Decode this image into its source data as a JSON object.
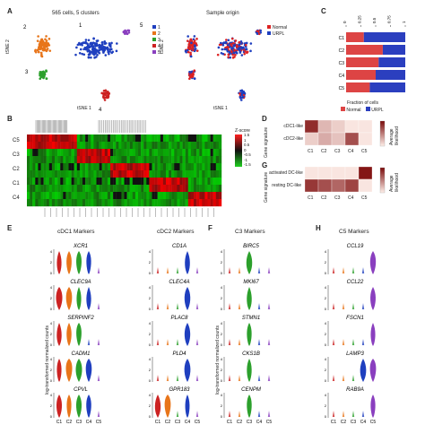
{
  "panels": {
    "A": {
      "letter": "A",
      "left_title": "565 cells, 5 clusters",
      "right_title": "Sample origin",
      "axis_x": "tSNE 1",
      "axis_y": "tSNE 2",
      "cluster_legend": [
        "1",
        "2",
        "3",
        "4",
        "5"
      ],
      "cluster_colors": [
        "#1f3fbf",
        "#e8751a",
        "#2ca02c",
        "#cc2222",
        "#8a3fbf"
      ],
      "origin_legend": [
        "Normal",
        "URPL"
      ],
      "origin_colors": [
        "#dd2222",
        "#1f3fbf"
      ],
      "cluster_labels": [
        "1",
        "2",
        "3",
        "4",
        "5"
      ]
    },
    "B": {
      "letter": "B",
      "rows": [
        "C5",
        "C3",
        "C2",
        "C1",
        "C4"
      ],
      "colorbar_ticks": [
        "1.5",
        "1",
        "0.5",
        "0",
        "-0.5",
        "-1",
        "-1.5"
      ],
      "colorbar_title": "Z-score"
    },
    "C": {
      "letter": "C",
      "rows": [
        "C1",
        "C2",
        "C3",
        "C4",
        "C5"
      ],
      "axis_label": "Fraction of cells",
      "ticks": [
        "0",
        "0.25",
        "0.5",
        "0.75",
        "1"
      ],
      "legend": [
        "Normal",
        "URPL"
      ],
      "colors": [
        "#dd4444",
        "#2b3fbf"
      ]
    },
    "D": {
      "letter": "D",
      "axis_title": "Gene signature",
      "rows": [
        "cDC1-like",
        "cDC2-like"
      ],
      "cols": [
        "C1",
        "C2",
        "C3",
        "C4",
        "C5"
      ],
      "cbar_label": "Average likelihood"
    },
    "G": {
      "letter": "G",
      "axis_title": "Gene signature",
      "rows": [
        "activated DC-like",
        "resting DC-like"
      ],
      "cols": [
        "C1",
        "C2",
        "C3",
        "C4",
        "C5"
      ],
      "cbar_label": "Average likelihood"
    },
    "E": {
      "letter": "E",
      "col1_title": "cDC1 Markers",
      "col1_genes": [
        "XCR1",
        "CLEC9A",
        "SERPINF2",
        "CADM1",
        "CPVL"
      ],
      "col2_title": "cDC2 Markers",
      "col2_genes": [
        "CD1A",
        "CLEC4A",
        "PLAC8",
        "PLD4",
        "GPR183"
      ],
      "ylabel": "log-transformed normalized counts",
      "x_ticks": [
        "C1",
        "C2",
        "C3",
        "C4",
        "C5"
      ]
    },
    "F": {
      "letter": "F",
      "title": "C3 Markers",
      "genes": [
        "BIRC5",
        "MKI67",
        "STMN1",
        "CKS1B",
        "CENPM"
      ],
      "ylabel": "log-transformed normalized counts",
      "x_ticks": [
        "C1",
        "C2",
        "C3",
        "C4",
        "C5"
      ]
    },
    "H": {
      "letter": "H",
      "title": "C5 Markers",
      "genes": [
        "CCL19",
        "CCL22",
        "FSCN1",
        "LAMP3",
        "RAB9A"
      ],
      "x_ticks": [
        "C1",
        "C2",
        "C3",
        "C4",
        "C5"
      ]
    }
  },
  "chart_data": [
    {
      "type": "bar",
      "title": "",
      "xlabel": "Fraction of cells",
      "categories": [
        "C1",
        "C2",
        "C3",
        "C4",
        "C5"
      ],
      "series": [
        {
          "name": "Normal",
          "values": [
            0.3,
            0.62,
            0.55,
            0.5,
            0.4
          ]
        },
        {
          "name": "URPL",
          "values": [
            0.7,
            0.38,
            0.45,
            0.5,
            0.6
          ]
        }
      ],
      "xlim": [
        0,
        1
      ]
    },
    {
      "type": "heatmap",
      "rows": [
        "cDC1-like",
        "cDC2-like"
      ],
      "cols": [
        "C1",
        "C2",
        "C3",
        "C4",
        "C5"
      ],
      "values": [
        [
          0.85,
          0.25,
          0.15,
          0.05,
          0.05
        ],
        [
          0.15,
          0.3,
          0.2,
          0.7,
          0.05
        ]
      ]
    },
    {
      "type": "heatmap",
      "rows": [
        "activated DC-like",
        "resting DC-like"
      ],
      "cols": [
        "C1",
        "C2",
        "C3",
        "C4",
        "C5"
      ],
      "values": [
        [
          0.05,
          0.05,
          0.05,
          0.05,
          0.95
        ],
        [
          0.8,
          0.7,
          0.6,
          0.75,
          0.05
        ]
      ]
    }
  ]
}
